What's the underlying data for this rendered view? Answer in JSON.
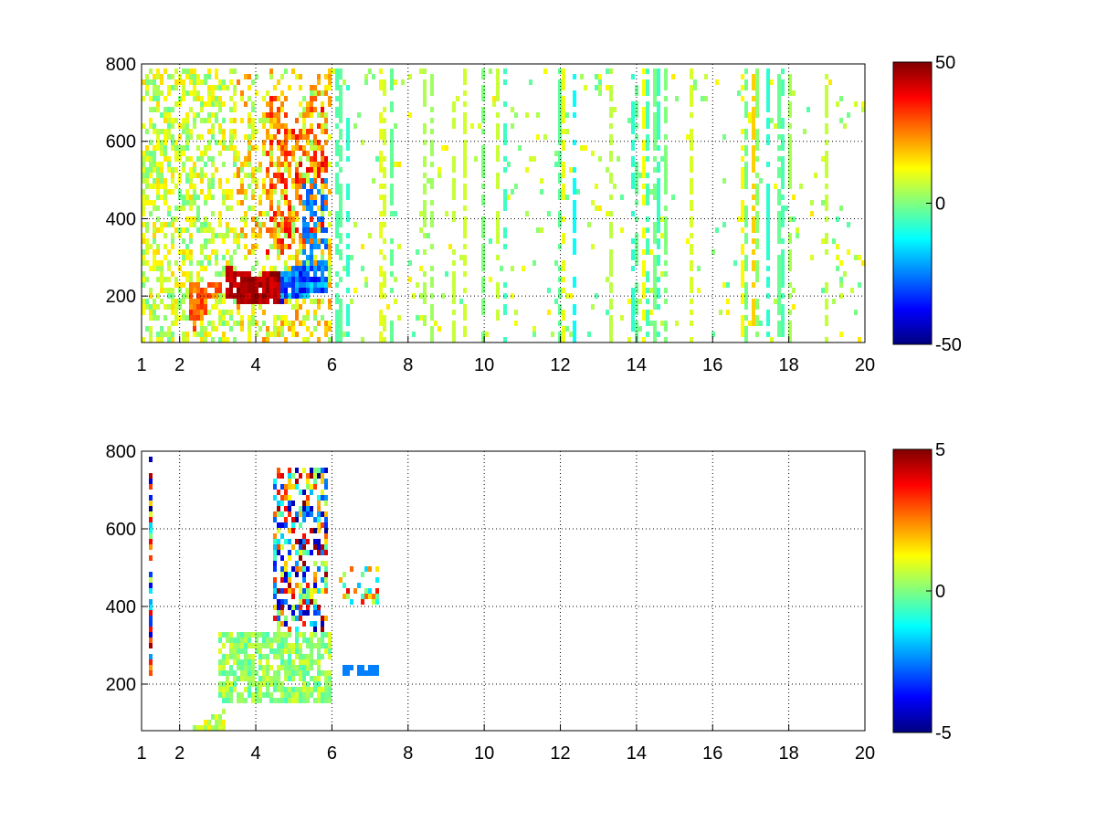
{
  "chart_data": [
    {
      "type": "heatmap",
      "title": "",
      "xlabel": "",
      "ylabel": "",
      "xlim": [
        1,
        20
      ],
      "ylim": [
        80,
        800
      ],
      "grid": true,
      "x_ticks": [
        1,
        2,
        4,
        6,
        8,
        10,
        12,
        14,
        16,
        18,
        20
      ],
      "y_ticks": [
        200,
        400,
        600,
        800
      ],
      "colormap": "jet",
      "clim": [
        -50,
        50
      ],
      "colorbar_ticks": [
        -50,
        0,
        50
      ],
      "colorbar_position": "right",
      "features": [
        {
          "x": [
            3.3,
            5.9
          ],
          "y": [
            180,
            300
          ],
          "value": 45,
          "description": "high band"
        },
        {
          "x": [
            4.6,
            5.9
          ],
          "y": [
            180,
            350
          ],
          "value": -30,
          "description": "low band"
        },
        {
          "x": [
            3.5,
            5.9
          ],
          "y": [
            300,
            800
          ],
          "value": 20,
          "description": "diffuse plume"
        },
        {
          "x": [
            1,
            3.5
          ],
          "y": [
            80,
            800
          ],
          "value": 10,
          "description": "dense noise"
        },
        {
          "x": [
            6,
            20
          ],
          "y": [
            80,
            800
          ],
          "value": 0,
          "description": "sparse noise"
        }
      ]
    },
    {
      "type": "heatmap",
      "title": "",
      "xlabel": "",
      "ylabel": "",
      "xlim": [
        1,
        20
      ],
      "ylim": [
        80,
        800
      ],
      "grid": true,
      "x_ticks": [
        1,
        2,
        4,
        6,
        8,
        10,
        12,
        14,
        16,
        18,
        20
      ],
      "y_ticks": [
        200,
        400,
        600,
        800
      ],
      "colormap": "jet",
      "clim": [
        -5,
        5
      ],
      "colorbar_ticks": [
        -5,
        0,
        5
      ],
      "colorbar_position": "right",
      "features": [
        {
          "x": [
            3.0,
            6.0
          ],
          "y": [
            160,
            330
          ],
          "value": 0,
          "description": "main cluster"
        },
        {
          "x": [
            4.5,
            6.0
          ],
          "y": [
            330,
            780
          ],
          "value": 3,
          "description": "mixed plume"
        },
        {
          "x": [
            6.2,
            7.2
          ],
          "y": [
            380,
            530
          ],
          "value": 1,
          "description": "secondary cluster"
        }
      ]
    }
  ]
}
